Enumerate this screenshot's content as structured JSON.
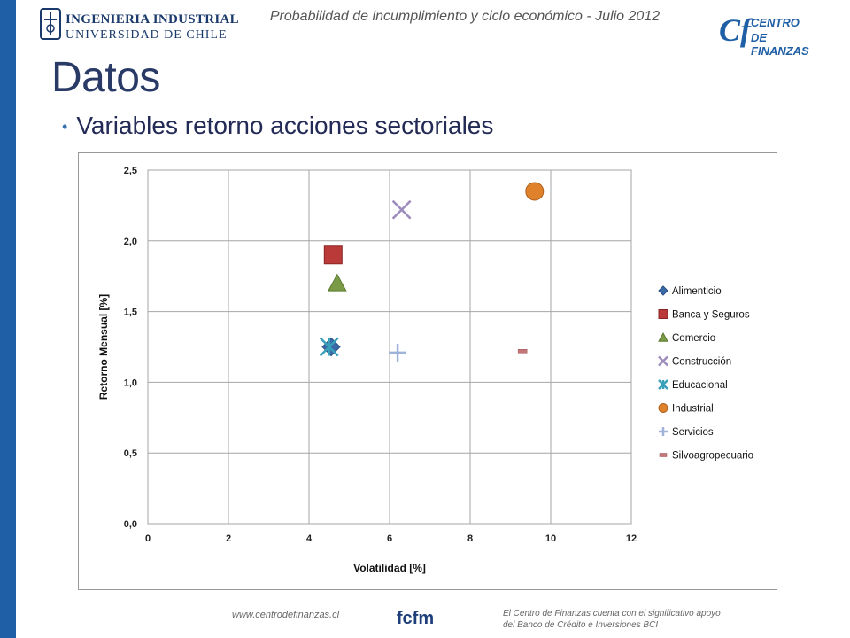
{
  "header": {
    "university_line1": "INGENIERIA INDUSTRIAL",
    "university_line2": "UNIVERSIDAD DE CHILE",
    "slide_header": "Probabilidad de incumplimiento y ciclo económico - Julio 2012",
    "cf_mark": "Cf",
    "cf_line1": "CENTRO",
    "cf_line2": "DE FINANZAS"
  },
  "title": "Datos",
  "bullet": "Variables retorno acciones sectoriales",
  "chart_data": {
    "type": "scatter",
    "title": "",
    "xlabel": "Volatilidad [%]",
    "ylabel": "Retorno Mensual [%]",
    "xlim": [
      0,
      12
    ],
    "ylim": [
      0,
      2.5
    ],
    "xticks": [
      0,
      2,
      4,
      6,
      8,
      10,
      12
    ],
    "xtick_labels": [
      "0",
      "2",
      "4",
      "6",
      "8",
      "10",
      "12"
    ],
    "yticks": [
      0,
      0.5,
      1.0,
      1.5,
      2.0,
      2.5
    ],
    "ytick_labels": [
      "0,0",
      "0,5",
      "1,0",
      "1,5",
      "2,0",
      "2,5"
    ],
    "grid": true,
    "legend_position": "right",
    "series": [
      {
        "name": "Alimenticio",
        "marker": "diamond",
        "color": "#3b6aa8",
        "x": [
          4.55
        ],
        "y": [
          1.25
        ]
      },
      {
        "name": "Banca y Seguros",
        "marker": "square",
        "color": "#b93a39",
        "x": [
          4.6
        ],
        "y": [
          1.9
        ]
      },
      {
        "name": "Comercio",
        "marker": "triangle",
        "color": "#7a9a45",
        "x": [
          4.7
        ],
        "y": [
          1.7
        ]
      },
      {
        "name": "Construcción",
        "marker": "x",
        "color": "#9d8dbf",
        "x": [
          6.3
        ],
        "y": [
          2.22
        ]
      },
      {
        "name": "Educacional",
        "marker": "star",
        "color": "#3a9fb8",
        "x": [
          4.5
        ],
        "y": [
          1.25
        ]
      },
      {
        "name": "Industrial",
        "marker": "circle",
        "color": "#e0812b",
        "x": [
          9.6
        ],
        "y": [
          2.35
        ]
      },
      {
        "name": "Servicios",
        "marker": "plus",
        "color": "#9fb3d8",
        "x": [
          6.2
        ],
        "y": [
          1.21
        ]
      },
      {
        "name": "Silvoagropecuario",
        "marker": "dash",
        "color": "#c4787a",
        "x": [
          9.3
        ],
        "y": [
          1.22
        ]
      }
    ]
  },
  "footer": {
    "url": "www.centrodefinanzas.cl",
    "logo_text": "fcfm",
    "note": "El Centro de Finanzas cuenta con el significativo apoyo del Banco de Crédito e Inversiones BCI"
  }
}
